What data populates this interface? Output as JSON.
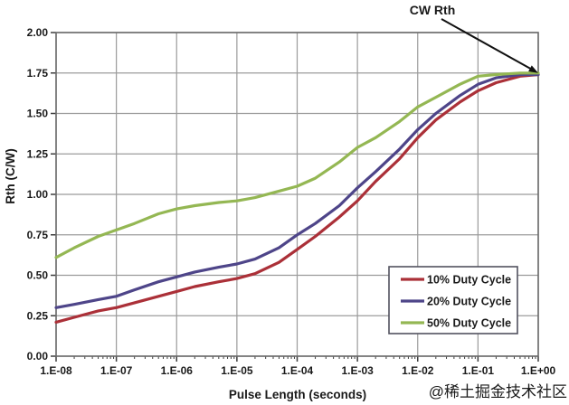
{
  "watermark": {
    "text": "@稀土掘金技术社区",
    "color": "#cbcbcb"
  },
  "chart_data": {
    "type": "line",
    "title": "",
    "xlabel": "Pulse Length (seconds)",
    "ylabel": "Rth (C/W)",
    "x_scale": "log10",
    "xlim": [
      1e-08,
      1.0
    ],
    "ylim": [
      0.0,
      2.0
    ],
    "grid": true,
    "y_tick_step": 0.25,
    "y_tick_labels": [
      "0.00",
      "0.25",
      "0.50",
      "0.75",
      "1.00",
      "1.25",
      "1.50",
      "1.75",
      "2.00"
    ],
    "x_tick_labels": [
      "1.E-08",
      "1.E-07",
      "1.E-06",
      "1.E-05",
      "1.E-04",
      "1.E-03",
      "1.E-02",
      "1.E-01",
      "1.E+00"
    ],
    "legend": {
      "position": "inside-lower-right"
    },
    "annotation": {
      "text": "CW Rth",
      "target_x": 1.0,
      "target_y": 1.75
    },
    "series": [
      {
        "name": "10% Duty Cycle",
        "color": "#ab3038",
        "x": [
          1e-08,
          2e-08,
          5e-08,
          1e-07,
          2e-07,
          5e-07,
          1e-06,
          2e-06,
          5e-06,
          1e-05,
          2e-05,
          5e-05,
          0.0001,
          0.0002,
          0.0005,
          0.001,
          0.002,
          0.005,
          0.01,
          0.02,
          0.05,
          0.1,
          0.2,
          0.5,
          1.0
        ],
        "y": [
          0.21,
          0.24,
          0.28,
          0.3,
          0.33,
          0.37,
          0.4,
          0.43,
          0.46,
          0.48,
          0.51,
          0.58,
          0.66,
          0.74,
          0.86,
          0.96,
          1.08,
          1.22,
          1.35,
          1.46,
          1.57,
          1.64,
          1.69,
          1.73,
          1.74
        ]
      },
      {
        "name": "20% Duty Cycle",
        "color": "#4e4589",
        "x": [
          1e-08,
          2e-08,
          5e-08,
          1e-07,
          2e-07,
          5e-07,
          1e-06,
          2e-06,
          5e-06,
          1e-05,
          2e-05,
          5e-05,
          0.0001,
          0.0002,
          0.0005,
          0.001,
          0.002,
          0.005,
          0.01,
          0.02,
          0.05,
          0.1,
          0.2,
          0.5,
          1.0
        ],
        "y": [
          0.3,
          0.32,
          0.35,
          0.37,
          0.41,
          0.46,
          0.49,
          0.52,
          0.55,
          0.57,
          0.6,
          0.67,
          0.75,
          0.82,
          0.93,
          1.04,
          1.14,
          1.28,
          1.4,
          1.5,
          1.61,
          1.68,
          1.72,
          1.74,
          1.74
        ]
      },
      {
        "name": "50% Duty Cycle",
        "color": "#94b753",
        "x": [
          1e-08,
          2e-08,
          5e-08,
          1e-07,
          2e-07,
          5e-07,
          1e-06,
          2e-06,
          5e-06,
          1e-05,
          2e-05,
          5e-05,
          0.0001,
          0.0002,
          0.0005,
          0.001,
          0.002,
          0.005,
          0.01,
          0.02,
          0.05,
          0.1,
          0.2,
          0.5,
          1.0
        ],
        "y": [
          0.61,
          0.67,
          0.74,
          0.78,
          0.82,
          0.88,
          0.91,
          0.93,
          0.95,
          0.96,
          0.98,
          1.02,
          1.05,
          1.1,
          1.2,
          1.29,
          1.35,
          1.45,
          1.54,
          1.6,
          1.68,
          1.73,
          1.74,
          1.75,
          1.75
        ]
      }
    ]
  }
}
